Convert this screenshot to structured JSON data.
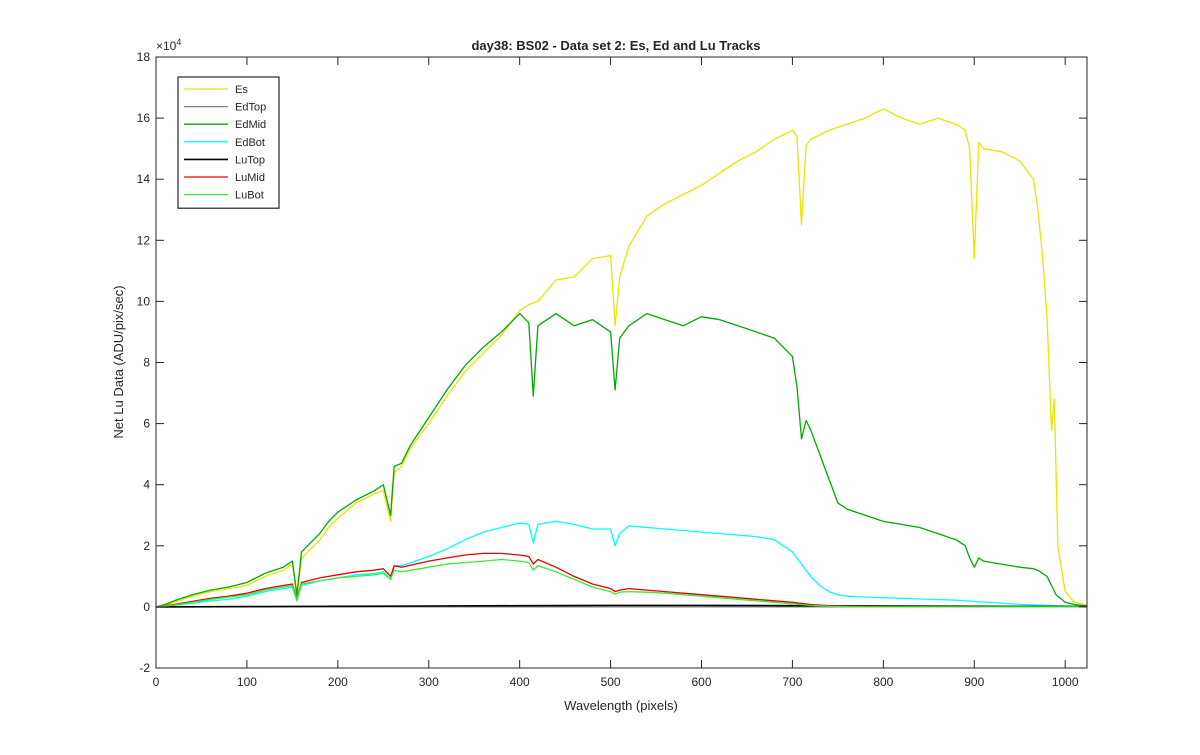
{
  "chart_data": {
    "type": "line",
    "title": "day38: BS02 - Data set 2: Es, Ed and Lu Tracks",
    "xlabel": "Wavelength (pixels)",
    "ylabel": "Net Lu Data (ADU/pix/sec)",
    "xlim": [
      0,
      1024
    ],
    "ylim": [
      -20000,
      180000
    ],
    "x_ticks": [
      0,
      100,
      200,
      300,
      400,
      500,
      600,
      700,
      800,
      900,
      1000
    ],
    "y_ticks": [
      -20000,
      0,
      20000,
      40000,
      60000,
      80000,
      100000,
      120000,
      140000,
      160000,
      180000
    ],
    "x_tick_labels": [
      "0",
      "100",
      "200",
      "300",
      "400",
      "500",
      "600",
      "700",
      "800",
      "900",
      "1000"
    ],
    "y_tick_labels": [
      "-2",
      "0",
      "2",
      "4",
      "6",
      "8",
      "10",
      "12",
      "14",
      "16",
      "18"
    ],
    "y_exponent_label": "×10",
    "y_exponent_power": "4",
    "grid": false,
    "legend_position": "top-left",
    "series": [
      {
        "name": "Es",
        "color": "#e6e600",
        "x": [
          0,
          10,
          20,
          40,
          60,
          80,
          100,
          120,
          140,
          150,
          155,
          160,
          170,
          180,
          190,
          200,
          220,
          240,
          250,
          258,
          262,
          270,
          280,
          300,
          320,
          340,
          360,
          380,
          400,
          410,
          420,
          440,
          460,
          480,
          500,
          505,
          510,
          520,
          530,
          540,
          560,
          580,
          600,
          620,
          640,
          660,
          680,
          700,
          705,
          710,
          715,
          720,
          740,
          760,
          780,
          800,
          820,
          840,
          860,
          880,
          890,
          895,
          900,
          905,
          910,
          930,
          950,
          965,
          970,
          975,
          980,
          985,
          988,
          992,
          1000,
          1010,
          1024
        ],
        "y": [
          0,
          500,
          1500,
          3500,
          5000,
          6000,
          7000,
          10000,
          12000,
          14000,
          3000,
          16000,
          19000,
          22000,
          26000,
          29000,
          34000,
          37000,
          38000,
          28000,
          44000,
          46000,
          52000,
          60000,
          69000,
          77000,
          83000,
          89000,
          97000,
          99000,
          100000,
          107000,
          108000,
          114000,
          115000,
          92000,
          108000,
          118000,
          123000,
          128000,
          132000,
          135000,
          138000,
          142000,
          146000,
          149000,
          153000,
          156000,
          154000,
          125000,
          151000,
          153000,
          156000,
          158000,
          160000,
          163000,
          160000,
          158000,
          160000,
          158000,
          156000,
          150000,
          114000,
          152000,
          150000,
          149000,
          146000,
          140000,
          130000,
          115000,
          95000,
          58000,
          68000,
          20000,
          5000,
          1500,
          600
        ]
      },
      {
        "name": "EdTop",
        "color": "#808080",
        "x": [
          0,
          200,
          400,
          600,
          800,
          1024
        ],
        "y": [
          0,
          0,
          0,
          0,
          0,
          0
        ]
      },
      {
        "name": "EdMid",
        "color": "#00aa00",
        "x": [
          0,
          10,
          20,
          40,
          60,
          80,
          100,
          120,
          140,
          150,
          155,
          160,
          170,
          180,
          190,
          200,
          220,
          240,
          250,
          258,
          262,
          270,
          280,
          300,
          320,
          340,
          360,
          380,
          400,
          410,
          415,
          420,
          440,
          460,
          480,
          500,
          505,
          510,
          520,
          540,
          560,
          580,
          600,
          620,
          640,
          660,
          680,
          700,
          705,
          710,
          715,
          720,
          730,
          740,
          750,
          760,
          780,
          800,
          820,
          840,
          860,
          880,
          890,
          895,
          900,
          905,
          910,
          930,
          950,
          965,
          970,
          980,
          985,
          990,
          1000,
          1010,
          1024
        ],
        "y": [
          0,
          800,
          2000,
          4000,
          5500,
          6500,
          8000,
          11000,
          13000,
          15000,
          4000,
          18000,
          21000,
          24000,
          28000,
          31000,
          35000,
          38000,
          40000,
          30000,
          46000,
          47000,
          53000,
          62000,
          71000,
          79000,
          85000,
          90000,
          96000,
          93000,
          69000,
          92000,
          96000,
          92000,
          94000,
          90000,
          71000,
          88000,
          92000,
          96000,
          94000,
          92000,
          95000,
          94000,
          92000,
          90000,
          88000,
          82000,
          72000,
          55000,
          61000,
          58000,
          50000,
          42000,
          34000,
          32000,
          30000,
          28000,
          27000,
          26000,
          24000,
          22000,
          20000,
          16000,
          13000,
          16000,
          15000,
          14000,
          13000,
          12500,
          12000,
          10000,
          7000,
          4000,
          1500,
          800,
          300
        ]
      },
      {
        "name": "EdBot",
        "color": "#00ffff",
        "x": [
          0,
          20,
          40,
          60,
          80,
          100,
          120,
          140,
          150,
          155,
          160,
          180,
          200,
          220,
          240,
          250,
          258,
          262,
          270,
          300,
          320,
          340,
          360,
          380,
          400,
          410,
          415,
          420,
          440,
          460,
          480,
          500,
          505,
          510,
          520,
          540,
          560,
          580,
          600,
          620,
          640,
          660,
          680,
          700,
          710,
          720,
          730,
          740,
          750,
          760,
          780,
          800,
          820,
          840,
          860,
          880,
          900,
          920,
          940,
          960,
          980,
          1000,
          1024
        ],
        "y": [
          0,
          500,
          1200,
          2000,
          2500,
          3500,
          5000,
          6000,
          6500,
          2000,
          7000,
          8500,
          9500,
          10500,
          11000,
          11500,
          9000,
          13500,
          13500,
          16500,
          19000,
          22000,
          24500,
          26000,
          27500,
          27000,
          21000,
          27000,
          28000,
          27000,
          25500,
          25500,
          20000,
          24000,
          26500,
          26000,
          25500,
          25000,
          24500,
          24000,
          23500,
          23000,
          22000,
          18000,
          14000,
          10000,
          7000,
          5000,
          4000,
          3500,
          3200,
          3000,
          2800,
          2600,
          2400,
          2200,
          1800,
          1400,
          1000,
          700,
          500,
          300,
          100
        ]
      },
      {
        "name": "LuTop",
        "color": "#000000",
        "x": [
          0,
          100,
          200,
          300,
          400,
          500,
          600,
          700,
          800,
          900,
          1024
        ],
        "y": [
          0,
          100,
          200,
          300,
          400,
          500,
          500,
          400,
          300,
          200,
          100
        ]
      },
      {
        "name": "LuMid",
        "color": "#e60000",
        "x": [
          0,
          20,
          40,
          60,
          80,
          100,
          120,
          140,
          150,
          155,
          160,
          180,
          200,
          220,
          240,
          250,
          258,
          262,
          270,
          300,
          320,
          340,
          360,
          380,
          400,
          410,
          415,
          420,
          440,
          460,
          480,
          500,
          505,
          510,
          520,
          540,
          560,
          580,
          600,
          620,
          640,
          660,
          680,
          700,
          720,
          740,
          760,
          780,
          800,
          850,
          900,
          950,
          1024
        ],
        "y": [
          0,
          800,
          1800,
          2800,
          3500,
          4500,
          6000,
          7000,
          7500,
          2500,
          8000,
          9500,
          10500,
          11500,
          12000,
          12500,
          10000,
          13500,
          13000,
          15000,
          16000,
          17000,
          17500,
          17500,
          17000,
          16500,
          14000,
          15500,
          13000,
          10000,
          7500,
          6000,
          5000,
          5500,
          6000,
          5500,
          5000,
          4500,
          4000,
          3500,
          3000,
          2500,
          2000,
          1500,
          800,
          400,
          200,
          100,
          0,
          0,
          0,
          0,
          0
        ]
      },
      {
        "name": "LuBot",
        "color": "#33ee33",
        "x": [
          0,
          20,
          40,
          60,
          80,
          100,
          120,
          140,
          150,
          155,
          160,
          180,
          200,
          220,
          240,
          250,
          258,
          262,
          270,
          300,
          320,
          340,
          360,
          380,
          400,
          410,
          415,
          420,
          440,
          460,
          480,
          500,
          505,
          510,
          520,
          540,
          560,
          580,
          600,
          620,
          640,
          660,
          680,
          700,
          720,
          740,
          760,
          780,
          800,
          850,
          900,
          950,
          1024
        ],
        "y": [
          0,
          600,
          1500,
          2500,
          3200,
          4000,
          5500,
          6500,
          7000,
          2200,
          7500,
          8500,
          9500,
          10000,
          10500,
          11000,
          9000,
          12000,
          11500,
          13000,
          14000,
          14500,
          15000,
          15500,
          15000,
          14500,
          12000,
          13500,
          11500,
          9000,
          6500,
          5000,
          4200,
          4800,
          5000,
          4800,
          4500,
          4000,
          3500,
          3000,
          2500,
          2000,
          1500,
          1000,
          500,
          200,
          100,
          0,
          0,
          0,
          0,
          0,
          0
        ]
      }
    ]
  }
}
